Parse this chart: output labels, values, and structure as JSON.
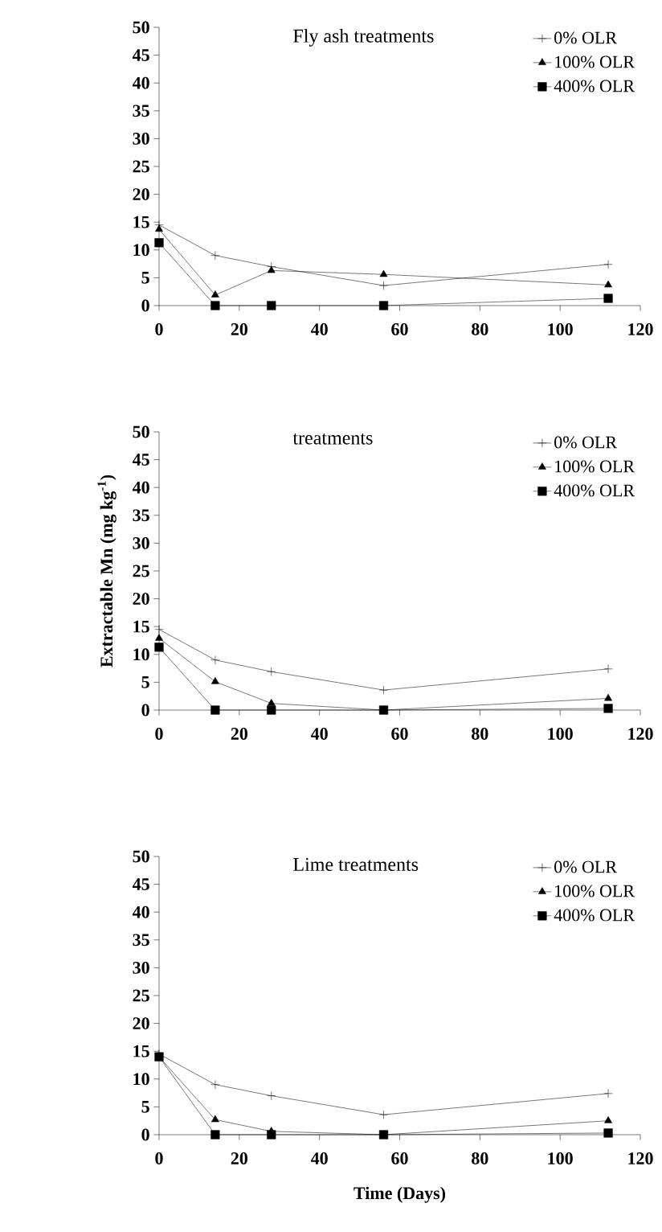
{
  "chart_data": [
    {
      "type": "line",
      "title": "Fly ash treatments",
      "x": [
        0,
        14,
        28,
        56,
        112
      ],
      "xlim": [
        0,
        120
      ],
      "xticks": [
        0,
        20,
        40,
        60,
        80,
        100,
        120
      ],
      "ylim": [
        0,
        50
      ],
      "yticks": [
        0,
        5,
        10,
        15,
        20,
        25,
        30,
        35,
        40,
        45,
        50
      ],
      "legend": "top right",
      "line_style": "solid",
      "series": [
        {
          "name": "0% OLR",
          "color": "#000000",
          "marker": "cross",
          "values": [
            14.5,
            9,
            7,
            3.6,
            7.4
          ]
        },
        {
          "name": "100% OLR",
          "color": "#000000",
          "marker": "triangle",
          "values": [
            13.7,
            1.9,
            6.3,
            5.6,
            3.7
          ]
        },
        {
          "name": "400% OLR",
          "color": "#000000",
          "marker": "square",
          "values": [
            11.3,
            0,
            0,
            0,
            1.3
          ]
        }
      ]
    },
    {
      "type": "line",
      "title": "treatments",
      "ylabel": "Extractable Mn (mg kg$^{-1}$)",
      "x": [
        0,
        14,
        28,
        56,
        112
      ],
      "xlim": [
        0,
        120
      ],
      "xticks": [
        0,
        20,
        40,
        60,
        80,
        100,
        120
      ],
      "ylim": [
        0,
        50
      ],
      "yticks": [
        0,
        5,
        10,
        15,
        20,
        25,
        30,
        35,
        40,
        45,
        50
      ],
      "legend": "top right",
      "line_style": "solid",
      "series": [
        {
          "name": "0% OLR",
          "color": "#000000",
          "marker": "cross",
          "values": [
            14.5,
            9,
            6.9,
            3.6,
            7.4
          ]
        },
        {
          "name": "100% OLR",
          "color": "#000000",
          "marker": "triangle",
          "values": [
            12.9,
            5.1,
            1.2,
            0,
            2.1
          ]
        },
        {
          "name": "400% OLR",
          "color": "#000000",
          "marker": "square",
          "values": [
            11.3,
            0,
            0,
            0,
            0.3
          ]
        }
      ]
    },
    {
      "type": "line",
      "title": "Lime treatments",
      "xlabel": "Time (Days)",
      "x": [
        0,
        14,
        28,
        56,
        112
      ],
      "xlim": [
        0,
        120
      ],
      "xticks": [
        0,
        20,
        40,
        60,
        80,
        100,
        120
      ],
      "ylim": [
        0,
        50
      ],
      "yticks": [
        0,
        5,
        10,
        15,
        20,
        25,
        30,
        35,
        40,
        45,
        50
      ],
      "legend": "top right",
      "line_style": "solid",
      "series": [
        {
          "name": "0% OLR",
          "color": "#000000",
          "marker": "cross",
          "values": [
            14.5,
            9,
            7,
            3.6,
            7.4
          ]
        },
        {
          "name": "100% OLR",
          "color": "#000000",
          "marker": "triangle",
          "values": [
            14,
            2.7,
            0.6,
            0,
            2.5
          ]
        },
        {
          "name": "400% OLR",
          "color": "#000000",
          "marker": "square",
          "values": [
            14,
            0,
            0,
            0,
            0.3
          ]
        }
      ]
    }
  ]
}
